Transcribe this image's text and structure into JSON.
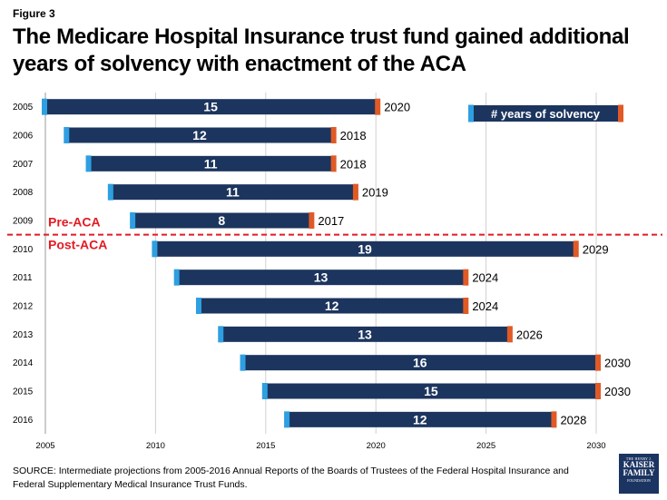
{
  "figure_label": "Figure 3",
  "title": "The Medicare Hospital Insurance trust fund gained additional years of solvency with enactment of the ACA",
  "source": "SOURCE: Intermediate projections from 2005-2016 Annual Reports of the Boards of Trustees of the Federal Hospital Insurance and Federal Supplementary Medical Insurance Trust Funds.",
  "logo": {
    "line1": "THE HENRY J.",
    "line2": "KAISER",
    "line3": "FAMILY",
    "line4": "FOUNDATION"
  },
  "chart_data": {
    "type": "bar",
    "orientation": "horizontal-range",
    "categories": [
      "2005",
      "2006",
      "2007",
      "2008",
      "2009",
      "2010",
      "2011",
      "2012",
      "2013",
      "2014",
      "2015",
      "2016"
    ],
    "series": [
      {
        "start": [
          2005,
          2006,
          2007,
          2008,
          2009,
          2010,
          2011,
          2012,
          2013,
          2014,
          2015,
          2016
        ],
        "end": [
          2020,
          2018,
          2018,
          2019,
          2017,
          2029,
          2024,
          2024,
          2026,
          2030,
          2030,
          2028
        ],
        "years": [
          15,
          12,
          11,
          11,
          8,
          19,
          13,
          12,
          13,
          16,
          15,
          12
        ]
      }
    ],
    "xlim": [
      2005,
      2030
    ],
    "x_ticks": [
      "2005",
      "2010",
      "2015",
      "2020",
      "2025",
      "2030"
    ],
    "grid": "vertical",
    "legend": {
      "label": "# years of solvency",
      "position": "top-right"
    },
    "divider": {
      "after_category": "2009",
      "label_above": "Pre-ACA",
      "label_below": "Post-ACA",
      "color": "#e31b23"
    },
    "colors": {
      "bar": "#1c355e",
      "start_marker": "#2e9fe0",
      "end_marker": "#e05a26",
      "grid": "#d0d0d0"
    }
  }
}
